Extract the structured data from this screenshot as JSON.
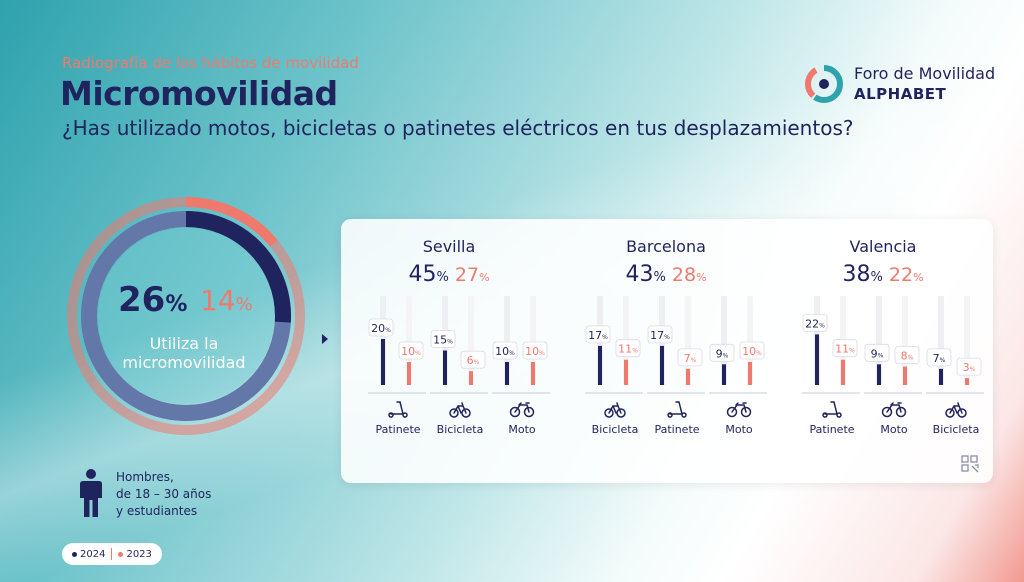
{
  "header": {
    "kicker": "Radiografía de los hábitos de movilidad",
    "title": "Micromovilidad",
    "question": "¿Has utilizado motos, bicicletas o patinetes eléctricos en tus desplazamientos?"
  },
  "logo": {
    "name": "Foro de Movilidad",
    "brand": "ALPHABET"
  },
  "summary": {
    "value_2024": "26",
    "value_2023": "14",
    "pct": "%",
    "caption_line1": "Utiliza la",
    "caption_line2": "micromovilidad"
  },
  "demographic": {
    "line1": "Hombres,",
    "line2": "de 18 – 30 años",
    "line3": "y estudiantes"
  },
  "legend": {
    "label_2024": "2024",
    "label_2023": "2023",
    "color_2024": "#1f235e",
    "color_2023": "#f0796e"
  },
  "chart_data": [
    {
      "type": "pie",
      "title": "",
      "series": [
        {
          "name": "2024",
          "values": [
            26,
            74
          ]
        },
        {
          "name": "2023",
          "values": [
            14,
            86
          ]
        }
      ]
    },
    {
      "type": "bar",
      "title": "Sevilla",
      "total_2024": 45,
      "total_2023": 27,
      "categories": [
        "Patinete",
        "Bicicleta",
        "Moto"
      ],
      "icons": [
        "scooter-icon",
        "bicycle-icon",
        "motorbike-icon"
      ],
      "series": [
        {
          "name": "2024",
          "values": [
            20,
            15,
            10
          ]
        },
        {
          "name": "2023",
          "values": [
            10,
            6,
            10
          ]
        }
      ]
    },
    {
      "type": "bar",
      "title": "Barcelona",
      "total_2024": 43,
      "total_2023": 28,
      "categories": [
        "Bicicleta",
        "Patinete",
        "Moto"
      ],
      "icons": [
        "bicycle-icon",
        "scooter-icon",
        "motorbike-icon"
      ],
      "series": [
        {
          "name": "2024",
          "values": [
            17,
            17,
            9
          ]
        },
        {
          "name": "2023",
          "values": [
            11,
            7,
            10
          ]
        }
      ]
    },
    {
      "type": "bar",
      "title": "Valencia",
      "total_2024": 38,
      "total_2023": 22,
      "categories": [
        "Patinete",
        "Moto",
        "Bicicleta"
      ],
      "icons": [
        "scooter-icon",
        "motorbike-icon",
        "bicycle-icon"
      ],
      "series": [
        {
          "name": "2024",
          "values": [
            22,
            9,
            7
          ]
        },
        {
          "name": "2023",
          "values": [
            11,
            8,
            3
          ]
        }
      ]
    }
  ]
}
